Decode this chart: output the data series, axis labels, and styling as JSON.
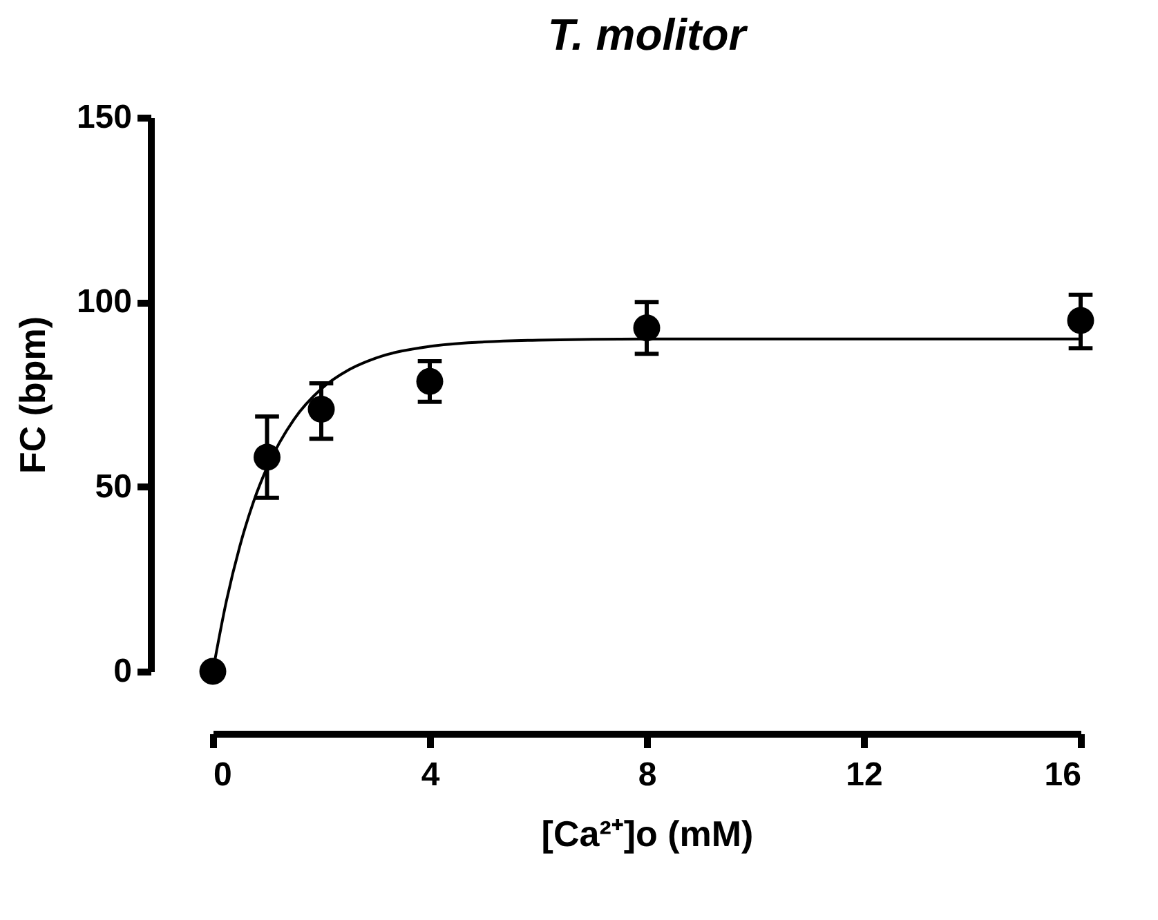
{
  "chart_data": {
    "type": "scatter",
    "title": "T. molitor",
    "xlabel": "[Ca²⁺]o (mM)",
    "ylabel": "FC (bpm)",
    "xlim": [
      0,
      16
    ],
    "xticks": [
      0,
      4,
      8,
      12,
      16
    ],
    "ylim": [
      0,
      150
    ],
    "yticks": [
      0,
      50,
      100,
      150
    ],
    "grid": false,
    "marker": "circle",
    "series": [
      {
        "color": "#000000",
        "x": [
          0,
          1,
          2,
          4,
          8,
          16
        ],
        "values": [
          0,
          58,
          71,
          78.5,
          93,
          95
        ],
        "errors": [
          null,
          [
            47,
            69
          ],
          [
            63,
            78
          ],
          [
            73,
            84
          ],
          [
            86,
            100
          ],
          [
            87.5,
            102
          ]
        ]
      },
      {
        "type": "line",
        "color": "#000000",
        "marker": "none",
        "line_style": "solid",
        "x": [
          0,
          0.25,
          0.5,
          0.75,
          1,
          1.5,
          2,
          2.5,
          3,
          4,
          5,
          6,
          8,
          10,
          12,
          16
        ],
        "values": [
          0,
          19,
          34,
          45.9,
          55.2,
          68.3,
          76.5,
          81.6,
          84.8,
          88,
          89.2,
          89.7,
          90,
          90,
          90,
          90
        ]
      }
    ]
  }
}
